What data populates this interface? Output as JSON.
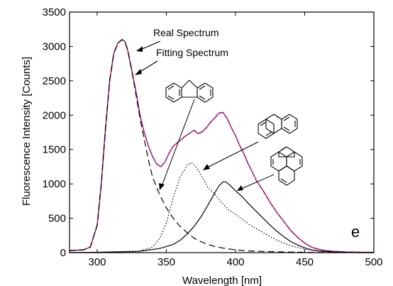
{
  "chart_data": {
    "type": "line",
    "xlabel": "Wavelength [nm]",
    "ylabel": "Fluorescence Intensity [Counts]",
    "xlim": [
      280,
      500
    ],
    "ylim": [
      0,
      3500
    ],
    "xticks": [
      300,
      350,
      400,
      450,
      500
    ],
    "yticks": [
      0,
      500,
      1000,
      1500,
      2000,
      2500,
      3000,
      3500
    ],
    "grid": false,
    "panel_label": "e",
    "annotations": [
      "Real Spectrum",
      "Fitting Spectrum"
    ],
    "molecule_icons": [
      "fluorene-structure-icon",
      "phenanthrene-structure-icon",
      "pyrene-structure-icon"
    ],
    "series": [
      {
        "name": "Real Spectrum",
        "color": "#e8195a",
        "style": "solid",
        "x": [
          280,
          290,
          295,
          300,
          303,
          306,
          309,
          312,
          315,
          318,
          320,
          322,
          325,
          328,
          331,
          334,
          337,
          340,
          343,
          346,
          349,
          352,
          355,
          358,
          361,
          364,
          367,
          370,
          373,
          376,
          379,
          382,
          385,
          388,
          391,
          394,
          397,
          400,
          403,
          406,
          409,
          412,
          415,
          420,
          425,
          430,
          435,
          440,
          445,
          450,
          455,
          460,
          465,
          470,
          475,
          480,
          485,
          490,
          495,
          500
        ],
        "y": [
          30,
          40,
          80,
          400,
          1000,
          1800,
          2500,
          2900,
          3050,
          3100,
          3070,
          2950,
          2650,
          2350,
          2000,
          1750,
          1550,
          1400,
          1290,
          1250,
          1320,
          1450,
          1550,
          1600,
          1650,
          1700,
          1740,
          1780,
          1730,
          1760,
          1820,
          1900,
          1960,
          2030,
          2040,
          1950,
          1820,
          1700,
          1560,
          1440,
          1300,
          1180,
          1050,
          900,
          730,
          580,
          450,
          320,
          220,
          140,
          80,
          50,
          30,
          20,
          15,
          10,
          8,
          5,
          5,
          5
        ]
      },
      {
        "name": "Fitting Spectrum",
        "color": "#3a3aa8",
        "style": "dashed",
        "x": [
          280,
          290,
          295,
          300,
          303,
          306,
          309,
          312,
          315,
          318,
          320,
          322,
          325,
          328,
          331,
          334,
          337,
          340,
          343,
          346,
          349,
          352,
          355,
          358,
          361,
          364,
          367,
          370,
          373,
          376,
          379,
          382,
          385,
          388,
          391,
          394,
          397,
          400,
          403,
          406,
          409,
          412,
          415,
          420,
          425,
          430,
          435,
          440,
          445,
          450,
          455,
          460,
          465,
          470,
          475,
          480,
          485,
          490,
          495,
          500
        ],
        "y": [
          30,
          40,
          80,
          400,
          1000,
          1800,
          2500,
          2900,
          3050,
          3100,
          3070,
          2950,
          2650,
          2350,
          2000,
          1750,
          1550,
          1400,
          1290,
          1250,
          1320,
          1450,
          1550,
          1600,
          1650,
          1700,
          1740,
          1780,
          1730,
          1760,
          1820,
          1900,
          1960,
          2030,
          2040,
          1950,
          1820,
          1700,
          1560,
          1440,
          1300,
          1180,
          1050,
          900,
          730,
          580,
          450,
          320,
          220,
          140,
          80,
          50,
          30,
          20,
          15,
          10,
          8,
          5,
          5,
          5
        ]
      },
      {
        "name": "Fluorene component",
        "color": "#000000",
        "style": "long-dashed",
        "x": [
          280,
          290,
          295,
          300,
          303,
          306,
          309,
          312,
          315,
          318,
          320,
          322,
          325,
          328,
          331,
          334,
          337,
          340,
          345,
          350,
          355,
          360,
          365,
          370,
          375,
          380,
          385,
          390,
          395,
          400,
          410,
          420,
          430,
          440,
          450,
          460,
          470,
          480,
          490,
          500
        ],
        "y": [
          30,
          40,
          80,
          400,
          1000,
          1800,
          2500,
          2900,
          3050,
          3100,
          3070,
          2950,
          2650,
          2300,
          1950,
          1650,
          1350,
          1100,
          850,
          650,
          500,
          380,
          290,
          210,
          160,
          120,
          90,
          70,
          55,
          40,
          25,
          18,
          12,
          8,
          5,
          3,
          2,
          1,
          0,
          0
        ]
      },
      {
        "name": "Phenanthrene component",
        "color": "#000000",
        "style": "dotted",
        "x": [
          280,
          320,
          330,
          340,
          345,
          350,
          355,
          360,
          365,
          368,
          371,
          374,
          377,
          380,
          385,
          390,
          395,
          400,
          410,
          420,
          430,
          440,
          450,
          460,
          470,
          480,
          490,
          500
        ],
        "y": [
          0,
          0,
          20,
          80,
          200,
          430,
          800,
          1100,
          1270,
          1310,
          1260,
          1170,
          1060,
          950,
          850,
          730,
          620,
          560,
          410,
          290,
          180,
          100,
          50,
          25,
          10,
          5,
          0,
          0
        ]
      },
      {
        "name": "Pyrene component",
        "color": "#000000",
        "style": "solid",
        "x": [
          280,
          300,
          330,
          345,
          355,
          360,
          365,
          370,
          375,
          380,
          385,
          388,
          391,
          393,
          396,
          400,
          405,
          410,
          415,
          420,
          425,
          430,
          435,
          440,
          445,
          450,
          455,
          460,
          470,
          480,
          490,
          500
        ],
        "y": [
          0,
          5,
          20,
          60,
          120,
          180,
          270,
          380,
          520,
          690,
          870,
          970,
          1030,
          1030,
          980,
          900,
          810,
          700,
          600,
          500,
          400,
          310,
          230,
          160,
          110,
          70,
          40,
          25,
          10,
          5,
          0,
          0
        ]
      }
    ]
  }
}
